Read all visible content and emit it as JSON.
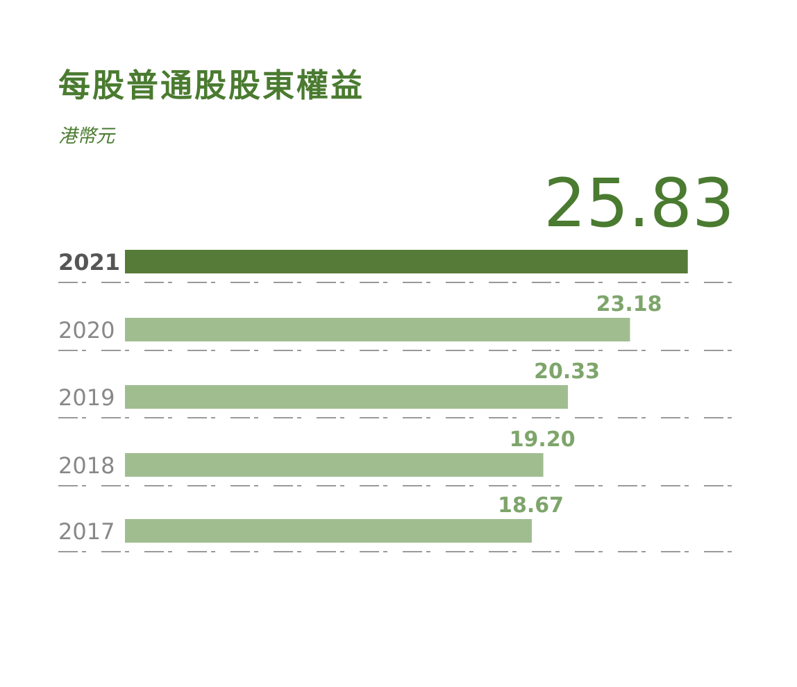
{
  "header": {
    "title": "每股普通股股東權益",
    "subtitle": "港幣元"
  },
  "colors": {
    "title": "#4a7b30",
    "highlight_bar": "#567a37",
    "bar": "#a0bd90",
    "highlight_value": "#4a7b30",
    "value": "#7ea56b",
    "highlight_category": "#555555",
    "category": "#888888",
    "gridline": "#999999"
  },
  "chart_data": {
    "type": "bar",
    "orientation": "horizontal",
    "title": "每股普通股股東權益",
    "subtitle": "港幣元",
    "categories": [
      "2021",
      "2020",
      "2019",
      "2018",
      "2017"
    ],
    "values": [
      25.83,
      23.18,
      20.33,
      19.2,
      18.67
    ],
    "value_labels": [
      "25.83",
      "23.18",
      "20.33",
      "19.20",
      "18.67"
    ],
    "highlight": "2021",
    "xlim": [
      0,
      26
    ]
  }
}
